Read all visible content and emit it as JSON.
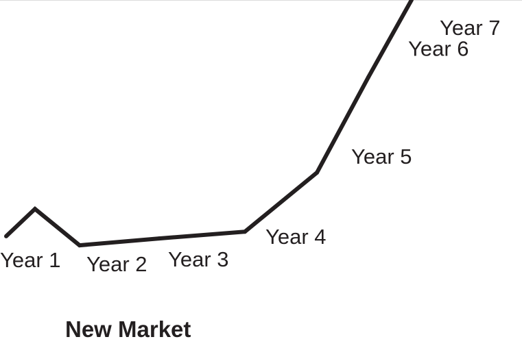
{
  "caption": "New Market",
  "chart_data": {
    "type": "line",
    "title": "New Market",
    "xlabel": "",
    "ylabel": "",
    "grid": false,
    "legend": "none",
    "axes_visible": false,
    "line_color": "#231f20",
    "series": [
      {
        "points": [
          {
            "label": "Year 1",
            "y": 1.0
          },
          {
            "label": "",
            "y": 2.2
          },
          {
            "label": "Year 2",
            "y": 0.6
          },
          {
            "label": "Year 3",
            "y": 0.9
          },
          {
            "label": "Year 4",
            "y": 1.2
          },
          {
            "label": "Year 5",
            "y": 3.8
          },
          {
            "label": "Year 6",
            "y": 8.0
          },
          {
            "label": "Year 7",
            "y": 11.4
          }
        ]
      }
    ]
  }
}
